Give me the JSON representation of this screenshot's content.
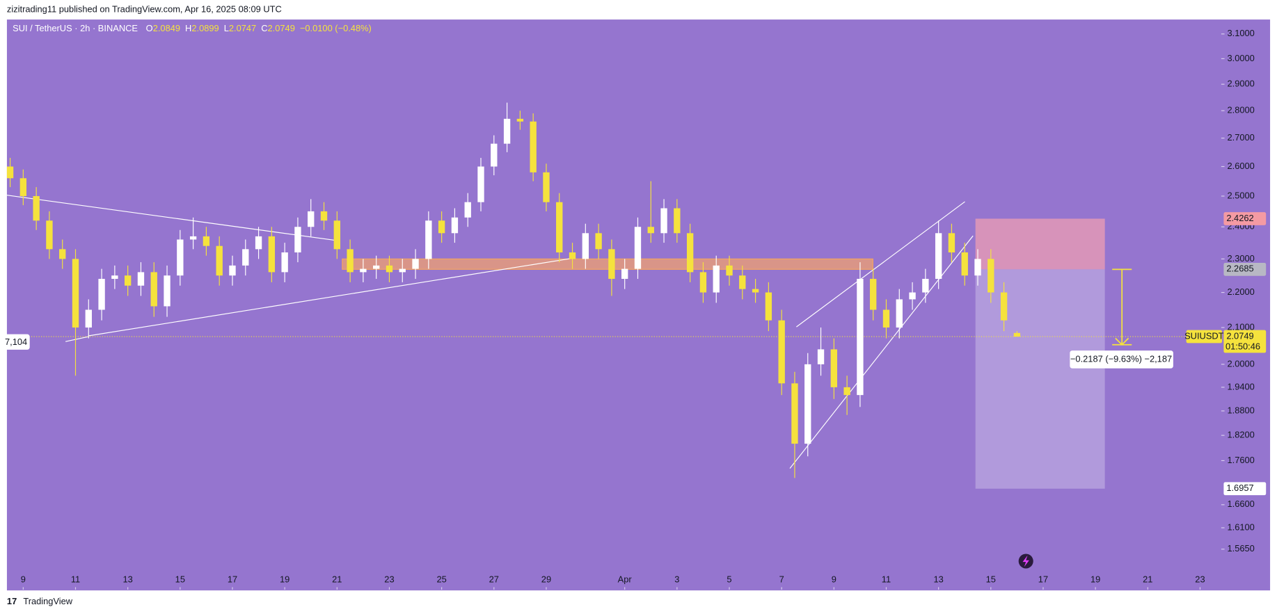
{
  "header": "zizitrading11 published on TradingView.com, Apr 16, 2025 08:09 UTC",
  "footer": "TradingView",
  "chart_data": {
    "type": "candlestick",
    "title": "SUI / TetherUS · 2h · BINANCE",
    "ohlc_letters": [
      "O",
      "H",
      "L",
      "C"
    ],
    "change": "−0.0100 (−0.48%)",
    "log_scale": true,
    "up_color": "#ffffff",
    "down_color": "#f5e23d",
    "xlim": [
      -0.623,
      45.81
    ],
    "xticks": [
      {
        "value": 0,
        "label": "9"
      },
      {
        "value": 2,
        "label": "11"
      },
      {
        "value": 4,
        "label": "13"
      },
      {
        "value": 6,
        "label": "15"
      },
      {
        "value": 8,
        "label": "17"
      },
      {
        "value": 10,
        "label": "19"
      },
      {
        "value": 12,
        "label": "21"
      },
      {
        "value": 14,
        "label": "23"
      },
      {
        "value": 16,
        "label": "25"
      },
      {
        "value": 18,
        "label": "27"
      },
      {
        "value": 20,
        "label": "29"
      },
      {
        "value": 23,
        "label": "Apr"
      },
      {
        "value": 25,
        "label": "3"
      },
      {
        "value": 27,
        "label": "5"
      },
      {
        "value": 29,
        "label": "7"
      },
      {
        "value": 31,
        "label": "9"
      },
      {
        "value": 33,
        "label": "11"
      },
      {
        "value": 35,
        "label": "13"
      },
      {
        "value": 37,
        "label": "15"
      },
      {
        "value": 39,
        "label": "17"
      },
      {
        "value": 41,
        "label": "19"
      },
      {
        "value": 43,
        "label": "21"
      },
      {
        "value": 45,
        "label": "23"
      }
    ],
    "ylim": [
      1.488,
      3.16
    ],
    "yticks": [
      {
        "value": 3.1,
        "label": "3.1000"
      },
      {
        "value": 3.0,
        "label": "3.0000"
      },
      {
        "value": 2.9,
        "label": "2.9000"
      },
      {
        "value": 2.8,
        "label": "2.8000"
      },
      {
        "value": 2.7,
        "label": "2.7000"
      },
      {
        "value": 2.6,
        "label": "2.6000"
      },
      {
        "value": 2.5,
        "label": "2.5000"
      },
      {
        "value": 2.4,
        "label": "2.4000"
      },
      {
        "value": 2.3,
        "label": "2.3000"
      },
      {
        "value": 2.2,
        "label": "2.2000"
      },
      {
        "value": 2.1,
        "label": "2.1000"
      },
      {
        "value": 2.0,
        "label": "2.0000"
      },
      {
        "value": 1.94,
        "label": "1.9400"
      },
      {
        "value": 1.88,
        "label": "1.8800"
      },
      {
        "value": 1.82,
        "label": "1.8200"
      },
      {
        "value": 1.76,
        "label": "1.7600"
      },
      {
        "value": 1.66,
        "label": "1.6600"
      },
      {
        "value": 1.61,
        "label": "1.6100"
      },
      {
        "value": 1.565,
        "label": "1.5650"
      }
    ],
    "x": [
      -0.5,
      0,
      0.5,
      1,
      1.5,
      2,
      2.5,
      3,
      3.5,
      4,
      4.5,
      5,
      5.5,
      6,
      6.5,
      7,
      7.5,
      8,
      8.5,
      9,
      9.5,
      10,
      10.5,
      11,
      11.5,
      12,
      12.5,
      13,
      13.5,
      14,
      14.5,
      15,
      15.5,
      16,
      16.5,
      17,
      17.5,
      18,
      18.5,
      19,
      19.5,
      20,
      20.5,
      21,
      21.5,
      22,
      22.5,
      23,
      23.5,
      24,
      24.5,
      25,
      25.5,
      26,
      26.5,
      27,
      27.5,
      28,
      28.5,
      29,
      29.5,
      30,
      30.5,
      31,
      31.5,
      32,
      32.5,
      33,
      33.5,
      34,
      34.5,
      35,
      35.5,
      36,
      36.5,
      37,
      37.5,
      38
    ],
    "open": [
      2.6,
      2.56,
      2.5,
      2.42,
      2.33,
      2.3,
      2.1,
      2.15,
      2.24,
      2.25,
      2.22,
      2.26,
      2.16,
      2.25,
      2.36,
      2.37,
      2.34,
      2.25,
      2.28,
      2.33,
      2.37,
      2.26,
      2.32,
      2.4,
      2.45,
      2.42,
      2.33,
      2.26,
      2.27,
      2.28,
      2.26,
      2.27,
      2.3,
      2.42,
      2.38,
      2.43,
      2.48,
      2.6,
      2.68,
      2.77,
      2.76,
      2.58,
      2.48,
      2.32,
      2.3,
      2.38,
      2.33,
      2.24,
      2.27,
      2.4,
      2.38,
      2.46,
      2.38,
      2.26,
      2.2,
      2.28,
      2.25,
      2.21,
      2.2,
      2.12,
      1.95,
      1.8,
      2.0,
      2.04,
      1.94,
      1.92,
      2.24,
      2.15,
      2.1,
      2.18,
      2.2,
      2.24,
      2.38,
      2.32,
      2.25,
      2.3,
      2.2,
      2.0849
    ],
    "high": [
      2.63,
      2.59,
      2.53,
      2.45,
      2.36,
      2.33,
      2.18,
      2.27,
      2.28,
      2.28,
      2.29,
      2.29,
      2.28,
      2.39,
      2.43,
      2.4,
      2.37,
      2.31,
      2.36,
      2.4,
      2.4,
      2.35,
      2.43,
      2.49,
      2.48,
      2.45,
      2.36,
      2.3,
      2.31,
      2.31,
      2.3,
      2.33,
      2.45,
      2.45,
      2.46,
      2.51,
      2.63,
      2.71,
      2.83,
      2.8,
      2.79,
      2.61,
      2.51,
      2.35,
      2.41,
      2.41,
      2.36,
      2.3,
      2.43,
      2.55,
      2.49,
      2.49,
      2.41,
      2.29,
      2.31,
      2.31,
      2.28,
      2.24,
      2.23,
      2.15,
      1.98,
      2.03,
      2.1,
      2.07,
      1.97,
      2.29,
      2.27,
      2.18,
      2.21,
      2.23,
      2.27,
      2.42,
      2.41,
      2.35,
      2.33,
      2.33,
      2.23,
      2.0899
    ],
    "low": [
      2.53,
      2.47,
      2.39,
      2.3,
      2.27,
      1.97,
      2.07,
      2.12,
      2.21,
      2.19,
      2.19,
      2.13,
      2.13,
      2.22,
      2.33,
      2.31,
      2.22,
      2.22,
      2.25,
      2.3,
      2.23,
      2.23,
      2.29,
      2.37,
      2.39,
      2.3,
      2.23,
      2.23,
      2.24,
      2.23,
      2.23,
      2.24,
      2.27,
      2.35,
      2.35,
      2.4,
      2.45,
      2.57,
      2.65,
      2.73,
      2.55,
      2.45,
      2.29,
      2.27,
      2.27,
      2.3,
      2.19,
      2.21,
      2.24,
      2.35,
      2.35,
      2.35,
      2.23,
      2.17,
      2.17,
      2.22,
      2.18,
      2.17,
      2.09,
      1.92,
      1.72,
      1.77,
      1.97,
      1.91,
      1.87,
      1.89,
      2.12,
      2.07,
      2.07,
      2.15,
      2.17,
      2.21,
      2.29,
      2.22,
      2.22,
      2.17,
      2.09,
      2.0747
    ],
    "close": [
      2.56,
      2.5,
      2.42,
      2.33,
      2.3,
      2.1,
      2.15,
      2.24,
      2.25,
      2.22,
      2.26,
      2.16,
      2.25,
      2.36,
      2.37,
      2.34,
      2.25,
      2.28,
      2.33,
      2.37,
      2.26,
      2.32,
      2.4,
      2.45,
      2.42,
      2.33,
      2.26,
      2.27,
      2.28,
      2.26,
      2.27,
      2.3,
      2.42,
      2.38,
      2.43,
      2.48,
      2.6,
      2.68,
      2.77,
      2.76,
      2.58,
      2.48,
      2.32,
      2.3,
      2.38,
      2.33,
      2.24,
      2.27,
      2.4,
      2.38,
      2.46,
      2.38,
      2.26,
      2.2,
      2.28,
      2.25,
      2.21,
      2.2,
      2.12,
      1.95,
      1.8,
      2.0,
      2.04,
      1.94,
      1.92,
      2.24,
      2.15,
      2.1,
      2.18,
      2.2,
      2.24,
      2.38,
      2.32,
      2.25,
      2.3,
      2.2,
      2.12,
      2.0749
    ],
    "annotations": {
      "stop_price": 2.4262,
      "entry_price": 2.2685,
      "target_price": 1.6957,
      "zone_top": 2.3,
      "measure_label": "−0.2187 (−9.63%) −2,187",
      "left_label": "7,104",
      "symbol": "SUIUSDT",
      "countdown": "01:50:46"
    }
  }
}
